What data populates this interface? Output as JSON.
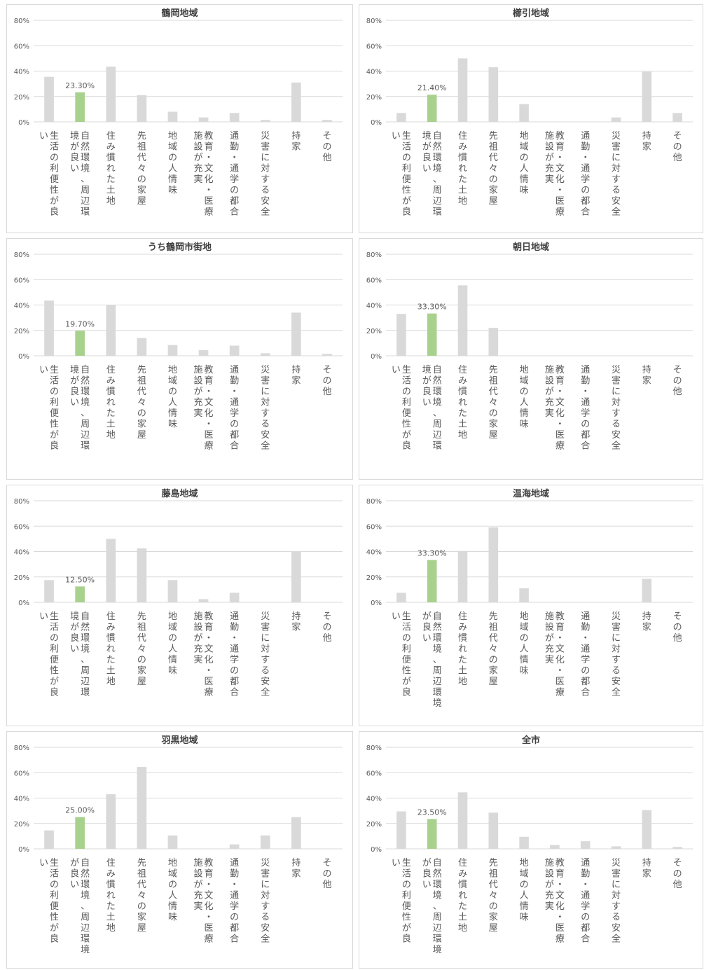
{
  "chart_data": [
    {
      "type": "bar",
      "title": "鶴岡地域",
      "categories": [
        "生活の利便性が良い",
        "自然環境、周辺環境が良い",
        "住み慣れた土地",
        "先祖代々の家屋",
        "地域の人情味",
        "教育・文化・医療施設が充実",
        "通勤・通学の都合",
        "災害に対する安全",
        "持家",
        "その他"
      ],
      "category_lines": [
        [
          "生活の利便性が良",
          "い"
        ],
        [
          "自然環境、周辺環",
          "境が良い"
        ],
        [
          "住み慣れた土地"
        ],
        [
          "先祖代々の家屋"
        ],
        [
          "地域の人情味"
        ],
        [
          "教育・文化・医療",
          "施設が充実"
        ],
        [
          "通勤・通学の都合"
        ],
        [
          "災害に対する安全"
        ],
        [
          "持家"
        ],
        [
          "その他"
        ]
      ],
      "values": [
        35.5,
        23.3,
        43.5,
        21.0,
        8.0,
        3.5,
        7.0,
        1.5,
        31.0,
        1.5
      ],
      "highlight_index": 1,
      "data_label": "23.30%",
      "ylim": [
        0,
        80
      ],
      "yticks": [
        "0%",
        "20%",
        "40%",
        "60%",
        "80%"
      ],
      "grid": true,
      "legend": "none"
    },
    {
      "type": "bar",
      "title": "櫛引地域",
      "categories": [
        "生活の利便性が良い",
        "自然環境、周辺環境が良い",
        "住み慣れた土地",
        "先祖代々の家屋",
        "地域の人情味",
        "教育・文化・医療施設が充実",
        "通勤・通学の都合",
        "災害に対する安全",
        "持家",
        "その他"
      ],
      "category_lines": [
        [
          "生活の利便性が良",
          "い"
        ],
        [
          "自然環境、周辺環",
          "境が良い"
        ],
        [
          "住み慣れた土地"
        ],
        [
          "先祖代々の家屋"
        ],
        [
          "地域の人情味"
        ],
        [
          "教育・文化・医療",
          "施設が充実"
        ],
        [
          "通勤・通学の都合"
        ],
        [
          "災害に対する安全"
        ],
        [
          "持家"
        ],
        [
          "その他"
        ]
      ],
      "values": [
        7.0,
        21.4,
        50.0,
        43.0,
        14.0,
        0,
        0,
        3.5,
        39.5,
        7.0
      ],
      "highlight_index": 1,
      "data_label": "21.40%",
      "ylim": [
        0,
        80
      ],
      "yticks": [
        "0%",
        "20%",
        "40%",
        "60%",
        "80%"
      ],
      "grid": true,
      "legend": "none"
    },
    {
      "type": "bar",
      "title": "うち鶴岡市街地",
      "categories": [
        "生活の利便性が良い",
        "自然環境、周辺環境が良い",
        "住み慣れた土地",
        "先祖代々の家屋",
        "地域の人情味",
        "教育・文化・医療施設が充実",
        "通勤・通学の都合",
        "災害に対する安全",
        "持家",
        "その他"
      ],
      "category_lines": [
        [
          "生活の利便性が良",
          "い"
        ],
        [
          "自然環境、周辺環",
          "境が良い"
        ],
        [
          "住み慣れた土地"
        ],
        [
          "先祖代々の家屋"
        ],
        [
          "地域の人情味"
        ],
        [
          "教育・文化・医療",
          "施設が充実"
        ],
        [
          "通勤・通学の都合"
        ],
        [
          "災害に対する安全"
        ],
        [
          "持家"
        ],
        [
          "その他"
        ]
      ],
      "values": [
        43.5,
        19.7,
        40.0,
        14.0,
        8.5,
        4.5,
        8.0,
        2.0,
        34.0,
        1.5
      ],
      "highlight_index": 1,
      "data_label": "19.70%",
      "ylim": [
        0,
        80
      ],
      "yticks": [
        "0%",
        "20%",
        "40%",
        "60%",
        "80%"
      ],
      "grid": true,
      "legend": "none"
    },
    {
      "type": "bar",
      "title": "朝日地域",
      "categories": [
        "生活の利便性が良い",
        "自然環境、周辺環境が良い",
        "住み慣れた土地",
        "先祖代々の家屋",
        "地域の人情味",
        "教育・文化・医療施設が充実",
        "通勤・通学の都合",
        "災害に対する安全",
        "持家",
        "その他"
      ],
      "category_lines": [
        [
          "生活の利便性が良",
          "い"
        ],
        [
          "自然環境、周辺環",
          "境が良い"
        ],
        [
          "住み慣れた土地"
        ],
        [
          "先祖代々の家屋"
        ],
        [
          "地域の人情味"
        ],
        [
          "教育・文化・医療",
          "施設が充実"
        ],
        [
          "通勤・通学の都合"
        ],
        [
          "災害に対する安全"
        ],
        [
          "持家"
        ],
        [
          "その他"
        ]
      ],
      "values": [
        33.0,
        33.3,
        55.5,
        22.0,
        0,
        0,
        0,
        0,
        0,
        0
      ],
      "highlight_index": 1,
      "data_label": "33.30%",
      "ylim": [
        0,
        80
      ],
      "yticks": [
        "0%",
        "20%",
        "40%",
        "60%",
        "80%"
      ],
      "grid": true,
      "legend": "none"
    },
    {
      "type": "bar",
      "title": "藤島地域",
      "categories": [
        "生活の利便性が良い",
        "自然環境、周辺環境が良い",
        "住み慣れた土地",
        "先祖代々の家屋",
        "地域の人情味",
        "教育・文化・医療施設が充実",
        "通勤・通学の都合",
        "災害に対する安全",
        "持家",
        "その他"
      ],
      "category_lines": [
        [
          "生活の利便性が良",
          "い"
        ],
        [
          "自然環境、周辺環",
          "境が良い"
        ],
        [
          "住み慣れた土地"
        ],
        [
          "先祖代々の家屋"
        ],
        [
          "地域の人情味"
        ],
        [
          "教育・文化・医療",
          "施設が充実"
        ],
        [
          "通勤・通学の都合"
        ],
        [
          "災害に対する安全"
        ],
        [
          "持家"
        ],
        [
          "その他"
        ]
      ],
      "values": [
        17.5,
        12.5,
        50.0,
        42.5,
        17.5,
        2.5,
        7.5,
        0,
        40.0,
        0
      ],
      "highlight_index": 1,
      "data_label": "12.50%",
      "ylim": [
        0,
        80
      ],
      "yticks": [
        "0%",
        "20%",
        "40%",
        "60%",
        "80%"
      ],
      "grid": true,
      "legend": "none"
    },
    {
      "type": "bar",
      "title": "温海地域",
      "categories": [
        "生活の利便性が良い",
        "自然環境、周辺環境が良い",
        "住み慣れた土地",
        "先祖代々の家屋",
        "地域の人情味",
        "教育・文化・医療施設が充実",
        "通勤・通学の都合",
        "災害に対する安全",
        "持家",
        "その他"
      ],
      "category_lines": [
        [
          "生活の利便性が良",
          "い"
        ],
        [
          "自然環境、周辺環境",
          "が良い"
        ],
        [
          "住み慣れた土地"
        ],
        [
          "先祖代々の家屋"
        ],
        [
          "地域の人情味"
        ],
        [
          "教育・文化・医療",
          "施設が充実"
        ],
        [
          "通勤・通学の都合"
        ],
        [
          "災害に対する安全"
        ],
        [
          "持家"
        ],
        [
          "その他"
        ]
      ],
      "values": [
        7.5,
        33.3,
        40.5,
        59.0,
        11.0,
        0,
        0,
        0,
        18.5,
        0
      ],
      "highlight_index": 1,
      "data_label": "33.30%",
      "ylim": [
        0,
        80
      ],
      "yticks": [
        "0%",
        "20%",
        "40%",
        "60%",
        "80%"
      ],
      "grid": true,
      "legend": "none"
    },
    {
      "type": "bar",
      "title": "羽黒地域",
      "categories": [
        "生活の利便性が良い",
        "自然環境、周辺環境が良い",
        "住み慣れた土地",
        "先祖代々の家屋",
        "地域の人情味",
        "教育・文化・医療施設が充実",
        "通勤・通学の都合",
        "災害に対する安全",
        "持家",
        "その他"
      ],
      "category_lines": [
        [
          "生活の利便性が良",
          "い"
        ],
        [
          "自然環境、周辺環境",
          "が良い"
        ],
        [
          "住み慣れた土地"
        ],
        [
          "先祖代々の家屋"
        ],
        [
          "地域の人情味"
        ],
        [
          "教育・文化・医療",
          "施設が充実"
        ],
        [
          "通勤・通学の都合"
        ],
        [
          "災害に対する安全"
        ],
        [
          "持家"
        ],
        [
          "その他"
        ]
      ],
      "values": [
        14.5,
        25.0,
        43.0,
        64.5,
        10.5,
        0,
        3.5,
        10.5,
        25.0,
        0
      ],
      "highlight_index": 1,
      "data_label": "25.00%",
      "ylim": [
        0,
        80
      ],
      "yticks": [
        "0%",
        "20%",
        "40%",
        "60%",
        "80%"
      ],
      "grid": true,
      "legend": "none"
    },
    {
      "type": "bar",
      "title": "全市",
      "categories": [
        "生活の利便性が良い",
        "自然環境、周辺環境が良い",
        "住み慣れた土地",
        "先祖代々の家屋",
        "地域の人情味",
        "教育・文化・医療施設が充実",
        "通勤・通学の都合",
        "災害に対する安全",
        "持家",
        "その他"
      ],
      "category_lines": [
        [
          "生活の利便性が良",
          "い"
        ],
        [
          "自然環境、周辺環境",
          "が良い"
        ],
        [
          "住み慣れた土地"
        ],
        [
          "先祖代々の家屋"
        ],
        [
          "地域の人情味"
        ],
        [
          "教育・文化・医療",
          "施設が充実"
        ],
        [
          "通勤・通学の都合"
        ],
        [
          "災害に対する安全"
        ],
        [
          "持家"
        ],
        [
          "その他"
        ]
      ],
      "values": [
        29.5,
        23.5,
        44.5,
        28.5,
        9.5,
        3.0,
        6.0,
        2.0,
        30.5,
        1.5
      ],
      "highlight_index": 1,
      "data_label": "23.50%",
      "ylim": [
        0,
        80
      ],
      "yticks": [
        "0%",
        "20%",
        "40%",
        "60%",
        "80%"
      ],
      "grid": true,
      "legend": "none"
    }
  ],
  "colors": {
    "bar": "#d9d9d9",
    "highlight": "#a9d18e",
    "grid": "#d9d9d9",
    "text": "#595959",
    "panel_border": "#d9d9d9"
  }
}
